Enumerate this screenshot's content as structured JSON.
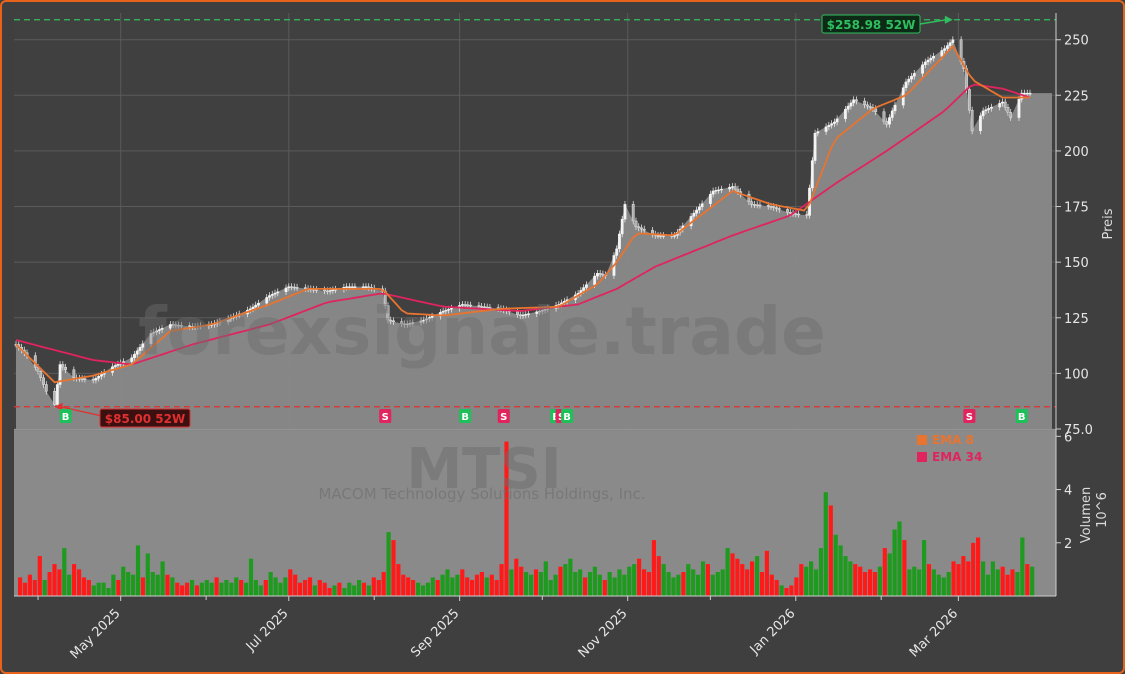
{
  "colors": {
    "background": "#3f3f3f",
    "panel": "#404040",
    "grid": "#5a5a5a",
    "area": "#8a8a8a",
    "up": "#1e9a1e",
    "down": "#ff1a1a",
    "ema8": "#e8742f",
    "ema34": "#e0245e",
    "high_line": "#2fbf5f",
    "low_line": "#e03030",
    "buy": "#1fbf5a",
    "sell": "#e0245e",
    "border": "#e8621b"
  },
  "watermark": {
    "site": "forexsignale.trade",
    "ticker": "MTSI",
    "company": "MACOM Technology Solutions Holdings, Inc."
  },
  "chart_data": [
    {
      "type": "line",
      "panel": "price",
      "ylabel": "Preis",
      "ylim": [
        75,
        262
      ],
      "yticks": [
        "75.0",
        "100",
        "125",
        "150",
        "175",
        "200",
        "225",
        "250"
      ],
      "x_range": [
        "2025-03-24",
        "2026-03-27"
      ],
      "x_tick_labels": [
        "May 2025",
        "Jul 2025",
        "Sep 2025",
        "Nov 2025",
        "Jan 2026",
        "Mar 2026"
      ],
      "x_tick_dates": [
        "2025-05-01",
        "2025-07-01",
        "2025-09-01",
        "2025-11-01",
        "2026-01-01",
        "2026-03-01"
      ],
      "close_anchors": [
        [
          "2025-03-24",
          113
        ],
        [
          "2025-03-28",
          108
        ],
        [
          "2025-04-01",
          101
        ],
        [
          "2025-04-04",
          92
        ],
        [
          "2025-04-07",
          86
        ],
        [
          "2025-04-09",
          104
        ],
        [
          "2025-04-14",
          98
        ],
        [
          "2025-04-21",
          97
        ],
        [
          "2025-04-28",
          103
        ],
        [
          "2025-05-05",
          107
        ],
        [
          "2025-05-12",
          118
        ],
        [
          "2025-05-19",
          122
        ],
        [
          "2025-05-27",
          121
        ],
        [
          "2025-06-03",
          122
        ],
        [
          "2025-06-10",
          125
        ],
        [
          "2025-06-17",
          129
        ],
        [
          "2025-06-24",
          135
        ],
        [
          "2025-07-01",
          139
        ],
        [
          "2025-07-08",
          138
        ],
        [
          "2025-07-15",
          137
        ],
        [
          "2025-07-22",
          139
        ],
        [
          "2025-07-29",
          139
        ],
        [
          "2025-08-04",
          137
        ],
        [
          "2025-08-06",
          124
        ],
        [
          "2025-08-12",
          122
        ],
        [
          "2025-08-19",
          124
        ],
        [
          "2025-08-26",
          128
        ],
        [
          "2025-09-02",
          131
        ],
        [
          "2025-09-09",
          130
        ],
        [
          "2025-09-16",
          129
        ],
        [
          "2025-09-23",
          126
        ],
        [
          "2025-09-30",
          128
        ],
        [
          "2025-10-07",
          131
        ],
        [
          "2025-10-14",
          136
        ],
        [
          "2025-10-21",
          145
        ],
        [
          "2025-10-24",
          144
        ],
        [
          "2025-10-28",
          156
        ],
        [
          "2025-10-31",
          176
        ],
        [
          "2025-11-04",
          166
        ],
        [
          "2025-11-11",
          162
        ],
        [
          "2025-11-18",
          162
        ],
        [
          "2025-11-25",
          172
        ],
        [
          "2025-12-02",
          182
        ],
        [
          "2025-12-09",
          184
        ],
        [
          "2025-12-16",
          176
        ],
        [
          "2025-12-23",
          175
        ],
        [
          "2025-12-30",
          172
        ],
        [
          "2026-01-05",
          171
        ],
        [
          "2026-01-08",
          208
        ],
        [
          "2026-01-15",
          213
        ],
        [
          "2026-01-22",
          223
        ],
        [
          "2026-01-29",
          219
        ],
        [
          "2026-02-03",
          212
        ],
        [
          "2026-02-05",
          218
        ],
        [
          "2026-02-10",
          231
        ],
        [
          "2026-02-17",
          240
        ],
        [
          "2026-02-24",
          246
        ],
        [
          "2026-02-27",
          250
        ],
        [
          "2026-03-03",
          237
        ],
        [
          "2026-03-06",
          209
        ],
        [
          "2026-03-10",
          218
        ],
        [
          "2026-03-17",
          222
        ],
        [
          "2026-03-20",
          215
        ],
        [
          "2026-03-24",
          226
        ],
        [
          "2026-03-27",
          226
        ]
      ],
      "ema8_anchors": [
        [
          "2025-03-24",
          113
        ],
        [
          "2025-04-07",
          96
        ],
        [
          "2025-04-21",
          99
        ],
        [
          "2025-05-05",
          104
        ],
        [
          "2025-05-19",
          119
        ],
        [
          "2025-06-03",
          122
        ],
        [
          "2025-06-24",
          131
        ],
        [
          "2025-07-08",
          138
        ],
        [
          "2025-08-04",
          138
        ],
        [
          "2025-08-12",
          127
        ],
        [
          "2025-08-26",
          126
        ],
        [
          "2025-09-16",
          129
        ],
        [
          "2025-10-07",
          130
        ],
        [
          "2025-10-21",
          140
        ],
        [
          "2025-10-28",
          150
        ],
        [
          "2025-11-04",
          163
        ],
        [
          "2025-11-18",
          162
        ],
        [
          "2025-12-09",
          182
        ],
        [
          "2025-12-23",
          176
        ],
        [
          "2026-01-05",
          173
        ],
        [
          "2026-01-15",
          205
        ],
        [
          "2026-01-29",
          219
        ],
        [
          "2026-02-10",
          225
        ],
        [
          "2026-02-27",
          247
        ],
        [
          "2026-03-06",
          232
        ],
        [
          "2026-03-17",
          224
        ],
        [
          "2026-03-27",
          224
        ]
      ],
      "ema34_anchors": [
        [
          "2025-03-24",
          115
        ],
        [
          "2025-04-21",
          106
        ],
        [
          "2025-05-05",
          104
        ],
        [
          "2025-05-27",
          113
        ],
        [
          "2025-06-24",
          122
        ],
        [
          "2025-07-15",
          132
        ],
        [
          "2025-08-04",
          136
        ],
        [
          "2025-08-26",
          130
        ],
        [
          "2025-09-23",
          128
        ],
        [
          "2025-10-14",
          131
        ],
        [
          "2025-10-28",
          138
        ],
        [
          "2025-11-11",
          148
        ],
        [
          "2025-12-09",
          162
        ],
        [
          "2025-12-30",
          171
        ],
        [
          "2026-01-15",
          185
        ],
        [
          "2026-02-03",
          200
        ],
        [
          "2026-02-24",
          218
        ],
        [
          "2026-03-06",
          230
        ],
        [
          "2026-03-17",
          228
        ],
        [
          "2026-03-27",
          224
        ]
      ],
      "high_52w": {
        "value": 258.98,
        "label": "$258.98 52W",
        "date": "2026-02-27"
      },
      "low_52w": {
        "value": 85.0,
        "label": "$85.00 52W",
        "date": "2025-04-07"
      },
      "signals": [
        {
          "date": "2025-04-11",
          "type": "B"
        },
        {
          "date": "2025-08-05",
          "type": "S"
        },
        {
          "date": "2025-09-03",
          "type": "B"
        },
        {
          "date": "2025-09-17",
          "type": "S"
        },
        {
          "date": "2025-10-06",
          "type": "B"
        },
        {
          "date": "2025-10-08",
          "type": "S"
        },
        {
          "date": "2025-10-10",
          "type": "B"
        },
        {
          "date": "2026-03-05",
          "type": "S"
        },
        {
          "date": "2026-03-24",
          "type": "B"
        }
      ],
      "legend": [
        {
          "name": "EMA 8"
        },
        {
          "name": "EMA 34"
        }
      ]
    },
    {
      "type": "bar",
      "panel": "volume",
      "ylabel": "Volumen",
      "y_unit": "10^6",
      "ylim": [
        0,
        6.2
      ],
      "yticks": [
        "2",
        "4",
        "6"
      ],
      "series": [
        {
          "volume_millions": [
            0.7,
            0.5,
            0.8,
            0.6,
            1.5,
            0.6,
            0.9,
            1.2,
            1.0,
            1.8,
            0.8,
            1.2,
            1.0,
            0.7,
            0.6,
            0.4,
            0.5,
            0.5,
            0.3,
            0.8,
            0.6,
            1.1,
            0.9,
            0.8,
            1.9,
            0.7,
            1.6,
            0.9,
            0.8,
            1.3,
            0.8,
            0.7,
            0.5,
            0.4,
            0.5,
            0.6,
            0.4,
            0.5,
            0.6,
            0.5,
            0.7,
            0.5,
            0.6,
            0.5,
            0.7,
            0.6,
            0.5,
            1.4,
            0.6,
            0.4,
            0.6,
            0.9,
            0.7,
            0.5,
            0.7,
            1.0,
            0.8,
            0.5,
            0.6,
            0.7,
            0.4,
            0.6,
            0.5,
            0.3,
            0.4,
            0.5,
            0.3,
            0.5,
            0.4,
            0.6,
            0.5,
            0.4,
            0.7,
            0.6,
            0.9,
            2.4,
            2.1,
            1.2,
            0.8,
            0.7,
            0.6,
            0.5,
            0.4,
            0.5,
            0.7,
            0.6,
            0.8,
            1.0,
            0.7,
            0.8,
            1.0,
            0.7,
            0.6,
            0.8,
            0.9,
            0.7,
            0.8,
            0.6,
            1.2,
            5.8,
            1.0,
            1.4,
            1.1,
            0.9,
            0.8,
            1.0,
            0.9,
            1.3,
            0.6,
            0.8,
            1.1,
            1.2,
            1.4,
            0.9,
            1.0,
            0.7,
            0.9,
            1.1,
            0.8,
            0.6,
            0.9,
            0.7,
            1.0,
            0.8,
            1.1,
            1.2,
            1.4,
            1.0,
            0.9,
            2.1,
            1.5,
            1.2,
            0.9,
            0.7,
            0.8,
            0.9,
            1.2,
            1.0,
            0.8,
            1.3,
            1.2,
            0.8,
            0.9,
            1.0,
            1.8,
            1.6,
            1.4,
            1.2,
            1.0,
            1.3,
            1.5,
            0.9,
            1.7,
            0.8,
            0.6,
            0.4,
            0.3,
            0.4,
            0.7,
            1.2,
            1.1,
            1.3,
            1.0,
            1.8,
            3.9,
            3.4,
            2.3,
            1.9,
            1.5,
            1.3,
            1.2,
            1.1,
            0.9,
            1.0,
            0.9,
            1.1,
            1.8,
            1.6,
            2.5,
            2.8,
            2.1,
            1.0,
            1.1,
            1.0,
            2.1,
            1.2,
            1.0,
            0.8,
            0.7,
            0.9,
            1.3,
            1.2,
            1.5,
            1.3,
            2.0,
            2.2,
            1.3,
            0.8,
            1.3,
            1.0,
            1.1,
            0.8,
            1.0,
            0.9,
            2.2,
            1.2,
            1.1
          ]
        }
      ],
      "legend": [
        {
          "name": "EMA 8"
        },
        {
          "name": "EMA 34"
        }
      ]
    }
  ]
}
